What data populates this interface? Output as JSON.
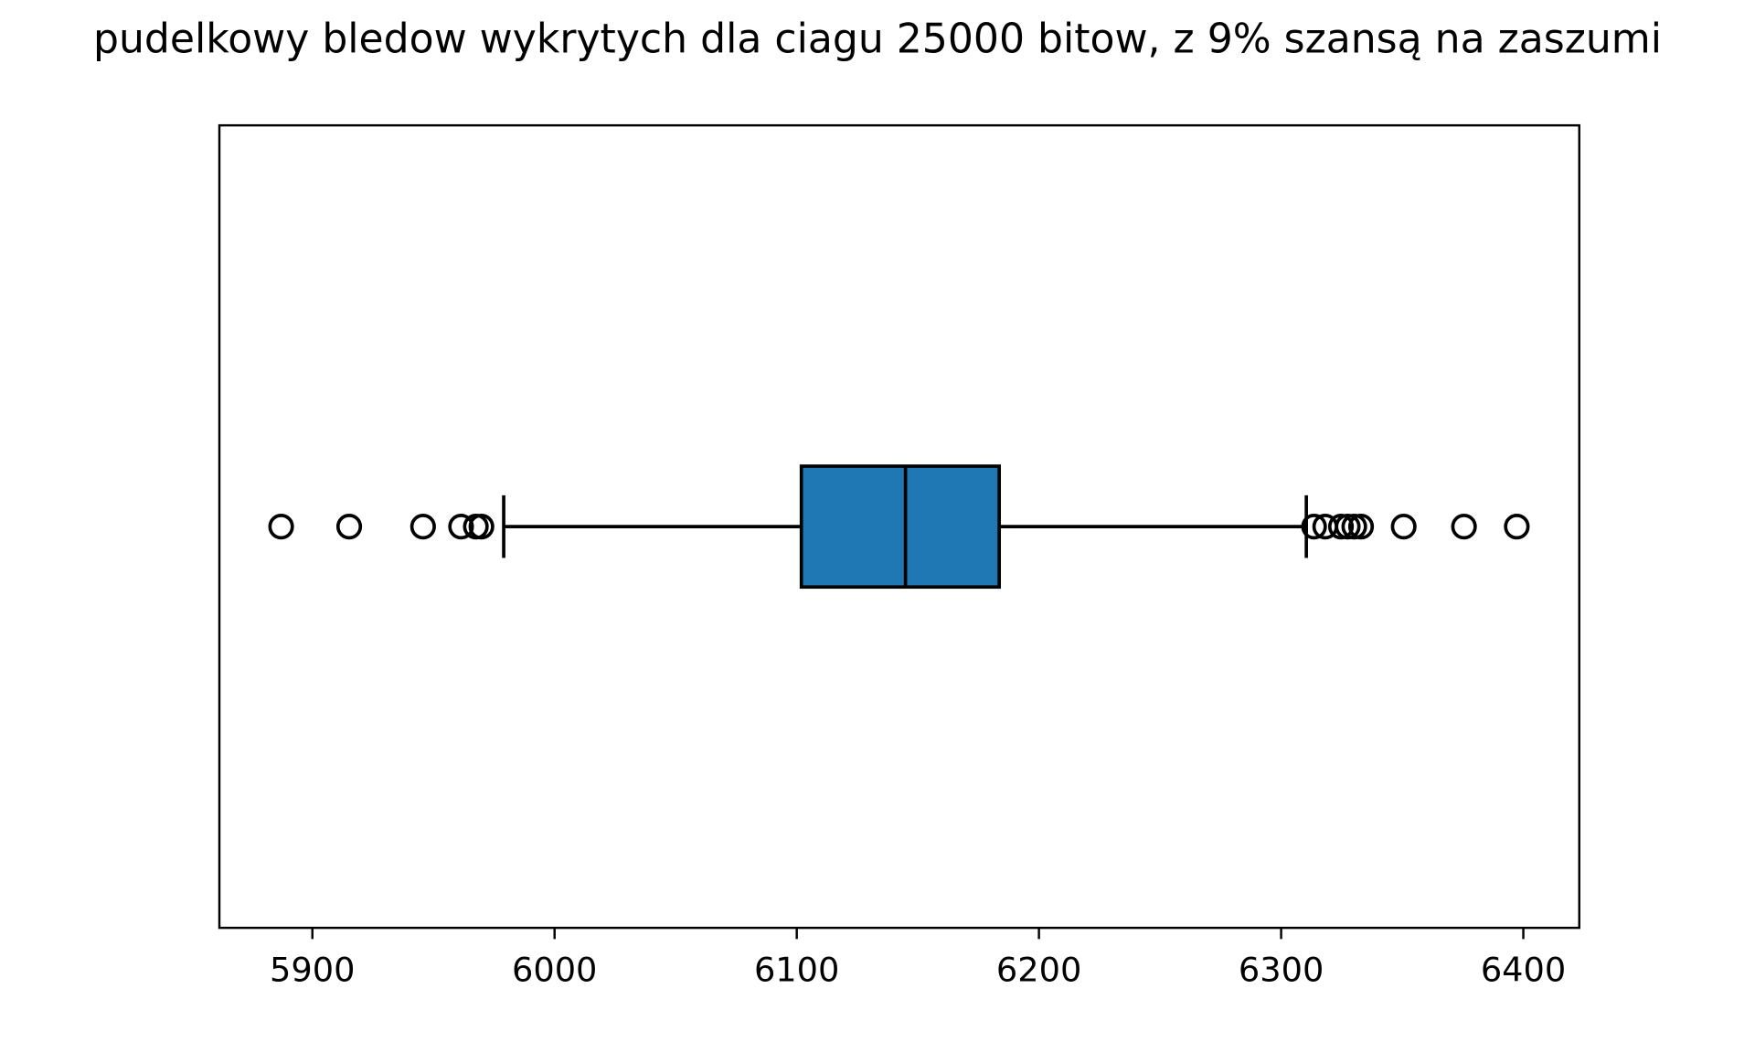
{
  "chart_data": {
    "type": "box",
    "title": "pudelkowy bledow wykrytych dla ciagu 25000 bitow, z 9% szansą na zaszumi",
    "boxes": [
      {
        "whislo": 5979.0,
        "q1": 6101.9,
        "med": 6144.9,
        "q3": 6183.6,
        "whishi": 6310.4,
        "fliers": [
          5887.1,
          5915.2,
          5945.7,
          5961.4,
          5967.5,
          5969.8,
          6313.6,
          6318.2,
          6324.7,
          6327.5,
          6330.2,
          6333.0,
          6350.6,
          6375.5,
          6397.3
        ]
      }
    ],
    "color": "#1f77b4",
    "orientation": "horizontal",
    "xlim": [
      5861.6,
      6423.1
    ],
    "xticks": [
      5900,
      6000,
      6100,
      6200,
      6300,
      6400
    ]
  }
}
